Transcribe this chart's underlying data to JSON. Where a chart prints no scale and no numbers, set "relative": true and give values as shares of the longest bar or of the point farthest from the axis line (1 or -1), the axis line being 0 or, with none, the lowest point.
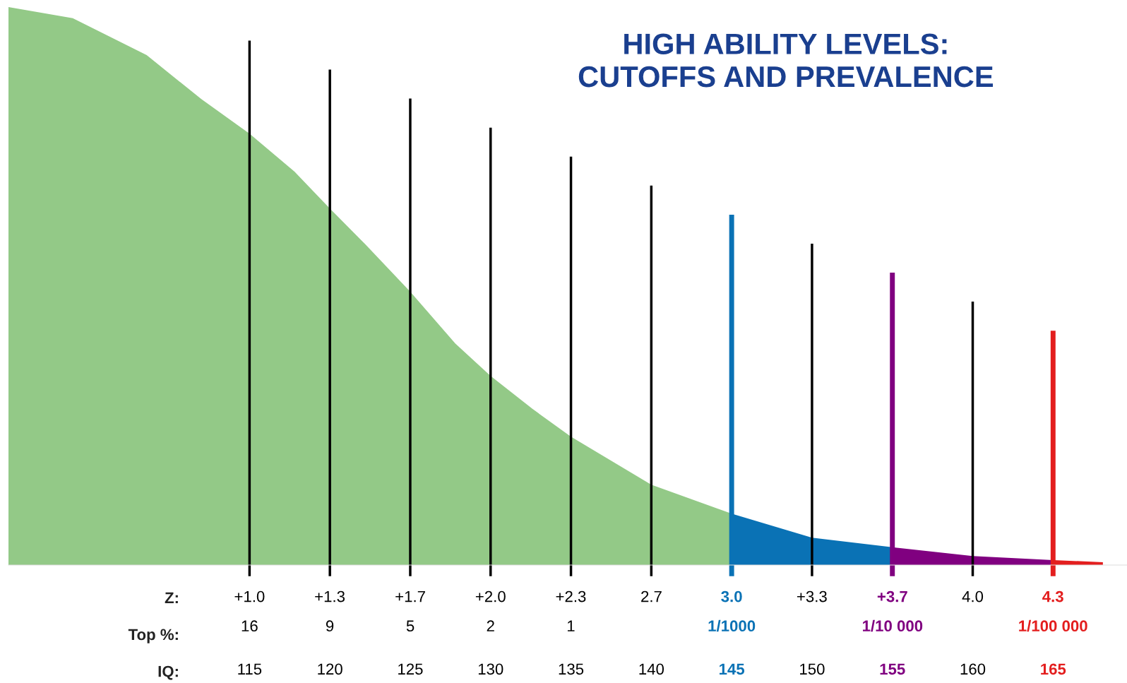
{
  "chart_data": {
    "type": "area",
    "title": "HIGH ABILITY LEVELS:\nCUTOFFS AND PREVALENCE",
    "xlabel": "IQ:",
    "x2label": "Z:",
    "relative": true,
    "xlim": [
      100,
      169.6
    ],
    "xticks": [
      115,
      120,
      125,
      130,
      135,
      140,
      145,
      150,
      155,
      160,
      165
    ],
    "x2lim": [
      0,
      4.64
    ],
    "x2ticks": [
      {
        "value": 1.0,
        "label": "+1.0\n16"
      },
      {
        "value": 1.333,
        "label": "+1.3\n9"
      },
      {
        "value": 1.667,
        "label": "+1.7\n5"
      },
      {
        "value": 2.0,
        "label": "+2.0\n2"
      },
      {
        "value": 2.333,
        "label": "+2.3\n1"
      },
      {
        "value": 2.667,
        "label": "2.7\n "
      },
      {
        "value": 3.0,
        "label": "3.0\n1/1000"
      },
      {
        "value": 3.333,
        "label": "+3.3\n "
      },
      {
        "value": 3.667,
        "label": "+3.7\n1/10 000"
      },
      {
        "value": 4.0,
        "label": "4.0\n "
      },
      {
        "value": 4.333,
        "label": "4.3\n1/100 000"
      }
    ],
    "series": [
      {
        "color": "#93c987",
        "x": [
          100,
          104,
          108.6,
          112,
          115,
          117.8,
          120,
          122.2,
          125,
          127.8,
          130,
          132.6,
          135,
          140,
          145
        ],
        "values": [
          1,
          0.98,
          0.914,
          0.835,
          0.773,
          0.705,
          0.639,
          0.575,
          0.49,
          0.397,
          0.339,
          0.28,
          0.23,
          0.144,
          0.092
        ]
      },
      {
        "color": "#0a72b5",
        "x": [
          145,
          150,
          155
        ],
        "values": [
          0.092,
          0.049,
          0.032
        ]
      },
      {
        "color": "#800080",
        "x": [
          155,
          160,
          165
        ],
        "values": [
          0.032,
          0.016,
          0.009
        ]
      },
      {
        "color": "#e31e1e",
        "x": [
          165,
          168.1
        ],
        "values": [
          0.009,
          0.005
        ]
      }
    ],
    "ref_lines": [
      {
        "axis": "x",
        "value": 115,
        "color": "#000000"
      },
      {
        "axis": "x",
        "value": 120,
        "color": "#000000"
      },
      {
        "axis": "x",
        "value": 125,
        "color": "#000000"
      },
      {
        "axis": "x",
        "value": 130,
        "color": "#000000"
      },
      {
        "axis": "x",
        "value": 135,
        "color": "#000000"
      },
      {
        "axis": "x",
        "value": 140,
        "color": "#000000"
      },
      {
        "axis": "x",
        "value": 145,
        "color": "#0a72b5"
      },
      {
        "axis": "x",
        "value": 150,
        "color": "#000000"
      },
      {
        "axis": "x",
        "value": 155,
        "color": "#800080"
      },
      {
        "axis": "x",
        "value": 160,
        "color": "#000000"
      },
      {
        "axis": "x",
        "value": 165,
        "color": "#e31e1e"
      }
    ],
    "annotations": [
      "Top %:"
    ],
    "grid": false,
    "legend": false
  }
}
